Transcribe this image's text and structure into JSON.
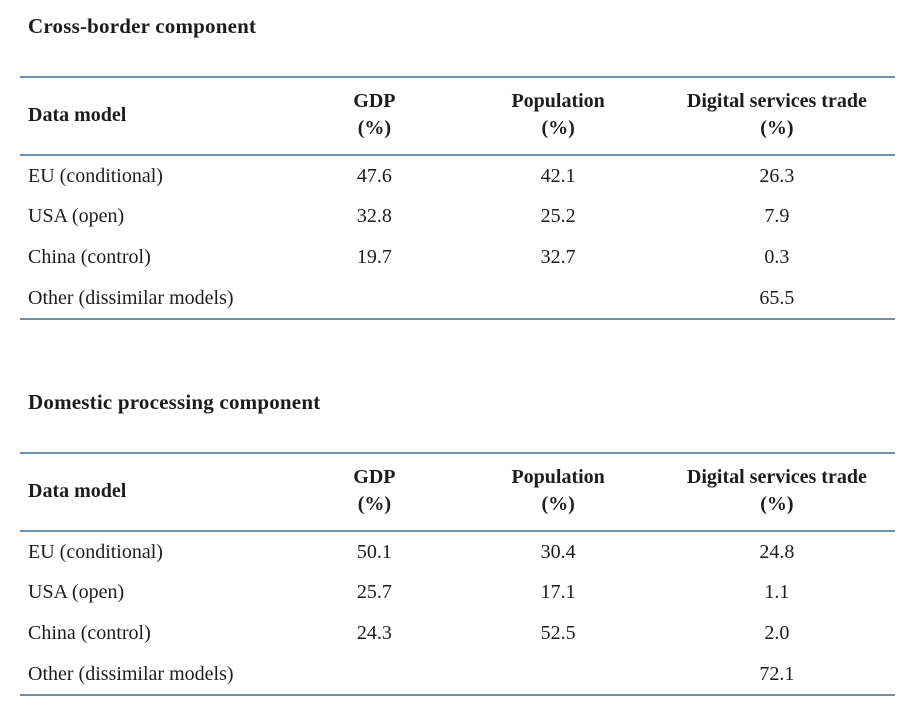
{
  "page": {
    "background": "#ffffff",
    "text_color": "#1c1c1c",
    "rule_color": "#6f92a6"
  },
  "sections": [
    {
      "title": "Cross-border component",
      "columns": [
        {
          "label": "Data model",
          "unit": ""
        },
        {
          "label": "GDP",
          "unit": "(%)"
        },
        {
          "label": "Population",
          "unit": "(%)"
        },
        {
          "label": "Digital services trade",
          "unit": "(%)"
        }
      ],
      "rows": [
        {
          "model": "EU (conditional)",
          "gdp": "47.6",
          "population": "42.1",
          "dst": "26.3"
        },
        {
          "model": "USA (open)",
          "gdp": "32.8",
          "population": "25.2",
          "dst": "7.9"
        },
        {
          "model": "China (control)",
          "gdp": "19.7",
          "population": "32.7",
          "dst": "0.3"
        },
        {
          "model": "Other (dissimilar models)",
          "gdp": "",
          "population": "",
          "dst": "65.5"
        }
      ]
    },
    {
      "title": "Domestic processing component",
      "columns": [
        {
          "label": "Data model",
          "unit": ""
        },
        {
          "label": "GDP",
          "unit": "(%)"
        },
        {
          "label": "Population",
          "unit": "(%)"
        },
        {
          "label": "Digital services trade",
          "unit": "(%)"
        }
      ],
      "rows": [
        {
          "model": "EU (conditional)",
          "gdp": "50.1",
          "population": "30.4",
          "dst": "24.8"
        },
        {
          "model": "USA (open)",
          "gdp": "25.7",
          "population": "17.1",
          "dst": "1.1"
        },
        {
          "model": "China (control)",
          "gdp": "24.3",
          "population": "52.5",
          "dst": "2.0"
        },
        {
          "model": "Other (dissimilar models)",
          "gdp": "",
          "population": "",
          "dst": "72.1"
        }
      ]
    }
  ],
  "chart_data": [
    {
      "type": "table",
      "title": "Cross-border component",
      "categories": [
        "EU (conditional)",
        "USA (open)",
        "China (control)",
        "Other (dissimilar models)"
      ],
      "series": [
        {
          "name": "GDP (%)",
          "values": [
            47.6,
            32.8,
            19.7,
            null
          ]
        },
        {
          "name": "Population (%)",
          "values": [
            42.1,
            25.2,
            32.7,
            null
          ]
        },
        {
          "name": "Digital services trade (%)",
          "values": [
            26.3,
            7.9,
            0.3,
            65.5
          ]
        }
      ]
    },
    {
      "type": "table",
      "title": "Domestic processing component",
      "categories": [
        "EU (conditional)",
        "USA (open)",
        "China (control)",
        "Other (dissimilar models)"
      ],
      "series": [
        {
          "name": "GDP (%)",
          "values": [
            50.1,
            25.7,
            24.3,
            null
          ]
        },
        {
          "name": "Population (%)",
          "values": [
            30.4,
            17.1,
            52.5,
            null
          ]
        },
        {
          "name": "Digital services trade (%)",
          "values": [
            24.8,
            1.1,
            2.0,
            72.1
          ]
        }
      ]
    }
  ]
}
